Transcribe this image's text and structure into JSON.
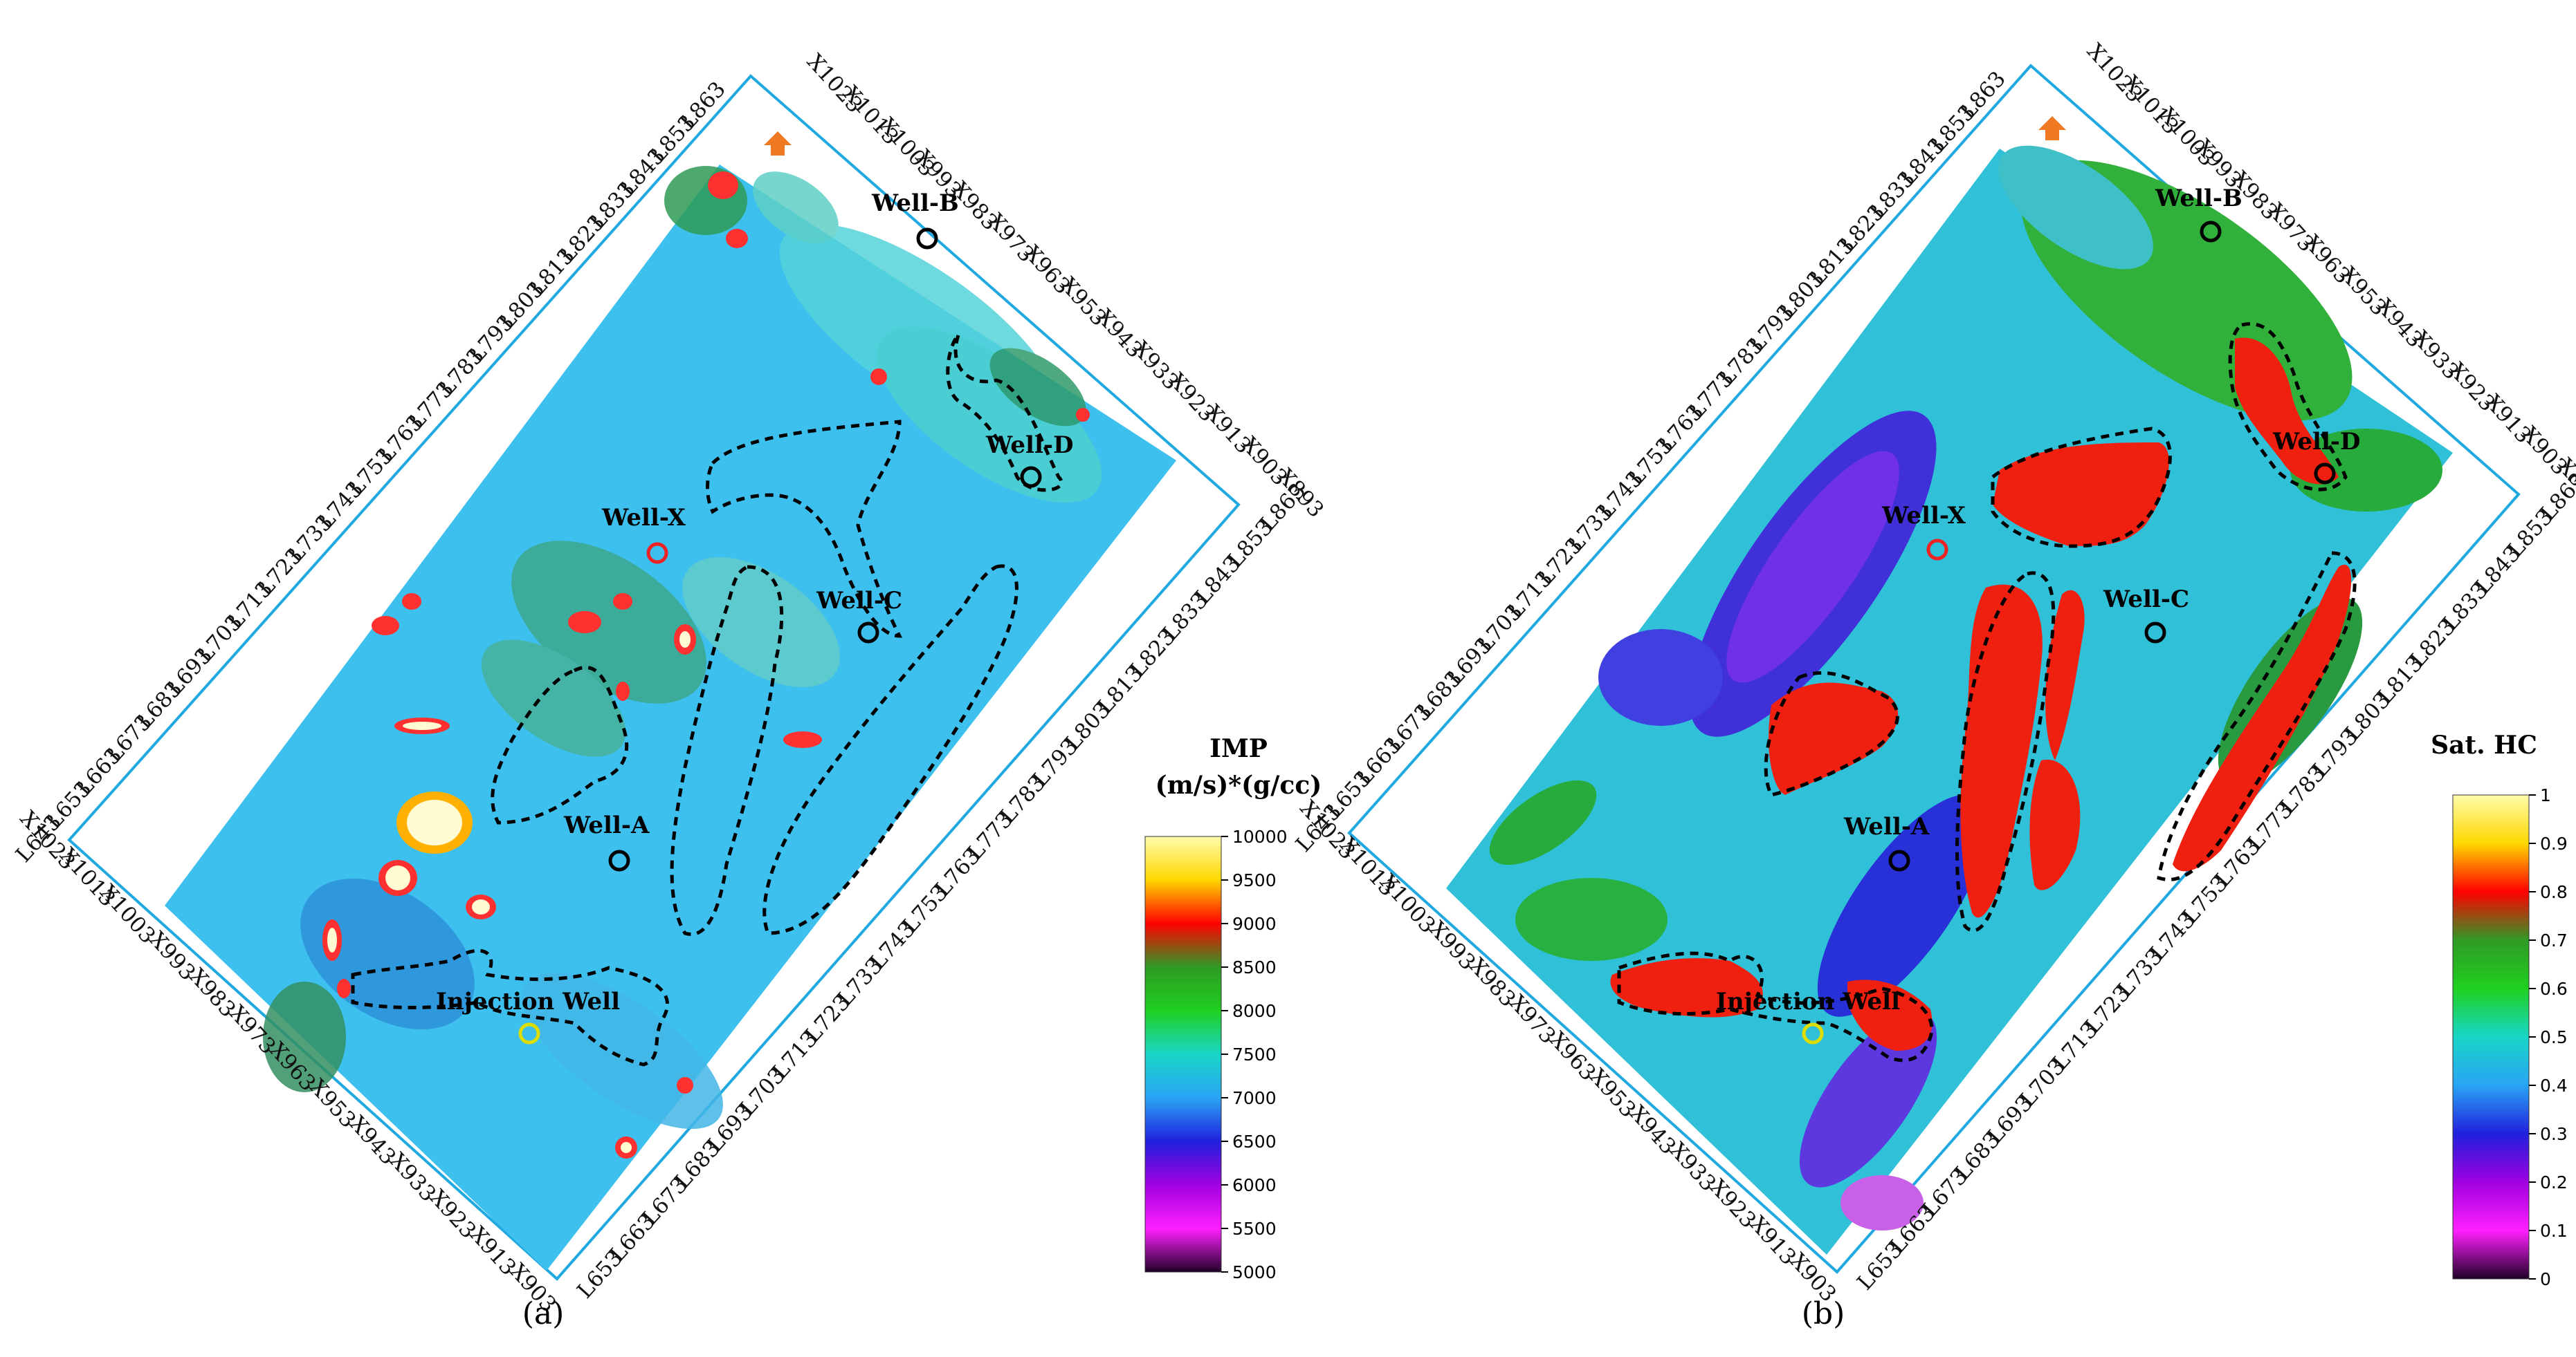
{
  "panels": [
    {
      "id": "a",
      "caption": "(a)",
      "property": "IMP",
      "colorbar": {
        "title_line1": "IMP",
        "title_line2": "(m/s)*(g/cc)",
        "ticks": [
          "10000",
          "9500",
          "9000",
          "8500",
          "8000",
          "7500",
          "7000",
          "6500",
          "6000",
          "5500",
          "5000"
        ],
        "stops": [
          "#fffcaa",
          "#ffd700",
          "#ff0000",
          "#2f9a25",
          "#20d020",
          "#18d6c8",
          "#2aa4f4",
          "#2020dd",
          "#a000e0",
          "#ff20ff",
          "#200028"
        ]
      },
      "wells": [
        {
          "name": "Well-B",
          "color": "#000000"
        },
        {
          "name": "Well-D",
          "color": "#000000"
        },
        {
          "name": "Well-X",
          "color": "#ee2222"
        },
        {
          "name": "Well-C",
          "color": "#000000"
        },
        {
          "name": "Well-A",
          "color": "#000000"
        },
        {
          "name": "Injection Well",
          "color": "#dddd00"
        }
      ]
    },
    {
      "id": "b",
      "caption": "(b)",
      "property": "Sat. HC",
      "colorbar": {
        "title_line1": "Sat. HC",
        "title_line2": "",
        "ticks": [
          "1",
          "0.9",
          "0.8",
          "0.7",
          "0.6",
          "0.5",
          "0.4",
          "0.3",
          "0.2",
          "0.1",
          "0"
        ],
        "stops": [
          "#fffcaa",
          "#ffd700",
          "#ff0000",
          "#2f9a25",
          "#20d020",
          "#18d6c8",
          "#2aa4f4",
          "#2020dd",
          "#a000e0",
          "#ff20ff",
          "#200028"
        ]
      },
      "wells": [
        {
          "name": "Well-B",
          "color": "#000000"
        },
        {
          "name": "Well-D",
          "color": "#000000"
        },
        {
          "name": "Well-X",
          "color": "#ee2222"
        },
        {
          "name": "Well-C",
          "color": "#000000"
        },
        {
          "name": "Well-A",
          "color": "#000000"
        },
        {
          "name": "Injection Well",
          "color": "#dddd00"
        }
      ]
    }
  ],
  "inline_labels": [
    "L653",
    "L663",
    "L673",
    "L683",
    "L693",
    "L703",
    "L713",
    "L723",
    "L733",
    "L743",
    "L753",
    "L763",
    "L773",
    "L783",
    "L793",
    "L803",
    "L813",
    "L823",
    "L833",
    "L843",
    "L853",
    "L863"
  ],
  "inline_labels_left": [
    "L643",
    "L653",
    "L663",
    "L673",
    "L683",
    "L693",
    "L703",
    "L713",
    "L723",
    "L733",
    "L743",
    "L753",
    "L763",
    "L773",
    "L783",
    "L793",
    "L803",
    "L813",
    "L823",
    "L833",
    "L843",
    "L853",
    "L863"
  ],
  "xline_labels": [
    "X903",
    "X913",
    "X923",
    "X933",
    "X943",
    "X953",
    "X963",
    "X973",
    "X983",
    "X993",
    "X1003",
    "X1013",
    "X1023"
  ],
  "xline_labels_right": [
    "X893",
    "X903",
    "X913",
    "X923",
    "X933",
    "X943",
    "X953",
    "X963",
    "X973",
    "X983",
    "X993",
    "X1003",
    "X1013",
    "X1023"
  ],
  "north_arrow_color": "#f07a24",
  "frame_color": "#1fa9e0",
  "outline_color": "#000000"
}
